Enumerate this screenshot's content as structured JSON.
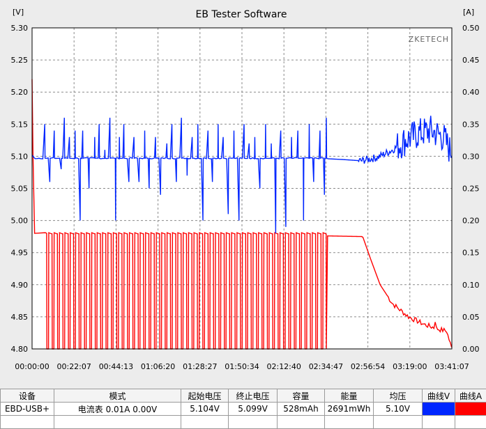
{
  "window": {
    "title": "EB Tester Software"
  },
  "chart_data": {
    "type": "line",
    "title": "EB Tester Software",
    "brand": "ZKETECH",
    "left_unit": "[V]",
    "right_unit": "[A]",
    "y_left": {
      "min": 4.8,
      "max": 5.3,
      "ticks": [
        "5.30",
        "5.25",
        "5.20",
        "5.15",
        "5.10",
        "5.05",
        "5.00",
        "4.95",
        "4.90",
        "4.85",
        "4.80"
      ]
    },
    "y_right": {
      "min": 0.0,
      "max": 0.5,
      "ticks": [
        "0.50",
        "0.45",
        "0.40",
        "0.35",
        "0.30",
        "0.25",
        "0.20",
        "0.15",
        "0.10",
        "0.05",
        "0.00"
      ]
    },
    "x_ticks": [
      "00:00:00",
      "00:22:07",
      "00:44:13",
      "01:06:20",
      "01:28:27",
      "01:50:34",
      "02:12:40",
      "02:34:47",
      "02:56:54",
      "03:19:00",
      "03:41:07"
    ],
    "x_range_seconds": [
      0,
      13267
    ],
    "grid": true,
    "series": [
      {
        "name": "曲线V",
        "axis": "left",
        "color": "#0026ff",
        "base": 5.097,
        "note_points": [
          [
            0,
            5.102
          ],
          [
            9000,
            5.097
          ],
          [
            9800,
            5.095
          ],
          [
            10400,
            5.093
          ],
          [
            10900,
            5.098
          ],
          [
            11400,
            5.11
          ],
          [
            11800,
            5.125
          ],
          [
            12200,
            5.135
          ],
          [
            12600,
            5.14
          ],
          [
            13000,
            5.13
          ],
          [
            13200,
            5.11
          ]
        ],
        "spikes": [
          [
            400,
            5.15
          ],
          [
            560,
            5.06
          ],
          [
            700,
            5.14
          ],
          [
            920,
            5.08
          ],
          [
            1020,
            5.16
          ],
          [
            1180,
            5.13
          ],
          [
            1360,
            5.14
          ],
          [
            1520,
            5.0
          ],
          [
            1600,
            5.14
          ],
          [
            1800,
            5.05
          ],
          [
            1980,
            5.13
          ],
          [
            2120,
            5.15
          ],
          [
            2300,
            5.11
          ],
          [
            2460,
            5.16
          ],
          [
            2640,
            5.0
          ],
          [
            2760,
            5.13
          ],
          [
            2900,
            5.15
          ],
          [
            3060,
            5.06
          ],
          [
            3220,
            5.13
          ],
          [
            3380,
            5.06
          ],
          [
            3560,
            5.14
          ],
          [
            3700,
            5.05
          ],
          [
            3900,
            5.13
          ],
          [
            4060,
            5.04
          ],
          [
            4260,
            5.12
          ],
          [
            4420,
            5.15
          ],
          [
            4560,
            5.06
          ],
          [
            4720,
            5.16
          ],
          [
            4900,
            5.07
          ],
          [
            5060,
            5.13
          ],
          [
            5240,
            5.15
          ],
          [
            5400,
            5.0
          ],
          [
            5560,
            5.14
          ],
          [
            5700,
            5.06
          ],
          [
            5880,
            5.15
          ],
          [
            6040,
            5.13
          ],
          [
            6200,
            5.01
          ],
          [
            6380,
            5.14
          ],
          [
            6540,
            5.0
          ],
          [
            6700,
            5.15
          ],
          [
            6860,
            5.12
          ],
          [
            7040,
            5.13
          ],
          [
            7200,
            5.05
          ],
          [
            7380,
            5.15
          ],
          [
            7560,
            5.12
          ],
          [
            7700,
            4.98
          ],
          [
            7860,
            5.14
          ],
          [
            8020,
            4.99
          ],
          [
            8200,
            5.13
          ],
          [
            8400,
            5.14
          ],
          [
            8580,
            5.0
          ],
          [
            8760,
            5.15
          ],
          [
            8900,
            5.06
          ],
          [
            9100,
            5.14
          ],
          [
            9240,
            5.04
          ],
          [
            9300,
            5.16
          ]
        ]
      },
      {
        "name": "曲线A",
        "axis": "right",
        "color": "#ff0000",
        "note_points": [
          [
            0,
            0.42
          ],
          [
            30,
            0.3
          ],
          [
            80,
            0.18
          ],
          [
            9310,
            0.176
          ],
          [
            10450,
            0.175
          ],
          [
            10700,
            0.14
          ],
          [
            11000,
            0.1
          ],
          [
            11400,
            0.07
          ],
          [
            11900,
            0.05
          ],
          [
            12400,
            0.038
          ],
          [
            12900,
            0.03
          ],
          [
            13100,
            0.028
          ],
          [
            13267,
            0.0
          ]
        ],
        "pulse_start_seconds": 460,
        "pulse_end_seconds": 9300,
        "pulse_count": 52,
        "plateau": 0.181
      }
    ]
  },
  "table": {
    "headers": [
      "设备",
      "模式",
      "起始电压",
      "终止电压",
      "容量",
      "能量",
      "均压",
      "曲线V",
      "曲线A"
    ],
    "row": {
      "device": "EBD-USB+",
      "mode": "电流表  0.01A  0.00V",
      "start_voltage": "5.104V",
      "end_voltage": "5.099V",
      "capacity": "528mAh",
      "energy": "2691mWh",
      "avg_voltage": "5.10V"
    },
    "swatch_v_color": "#0026ff",
    "swatch_a_color": "#ff0000"
  }
}
